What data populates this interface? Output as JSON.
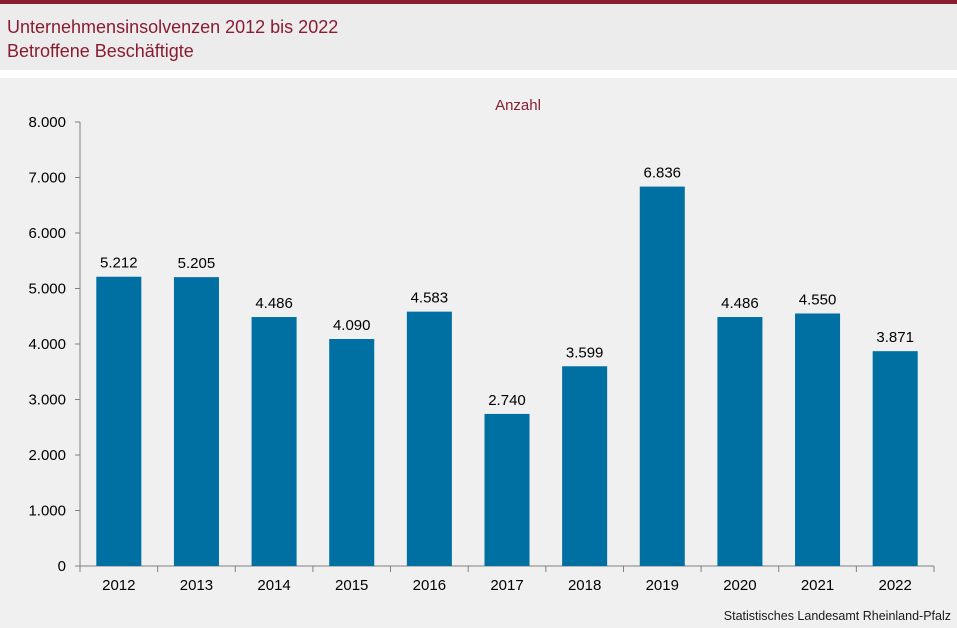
{
  "header": {
    "title": "Unternehmensinsolvenzen 2012 bis 2022",
    "subtitle": "Betroffene Beschäftigte"
  },
  "source": "Statistisches Landesamt  Rheinland-Pfalz",
  "colors": {
    "accent": "#8a1c32",
    "bar": "#0070a3",
    "background": "#f0f0f0"
  },
  "chart_data": {
    "type": "bar",
    "title": "Unternehmensinsolvenzen 2012 bis 2022",
    "subtitle": "Betroffene Beschäftigte",
    "ylabel": "Anzahl",
    "xlabel": "",
    "categories": [
      "2012",
      "2013",
      "2014",
      "2015",
      "2016",
      "2017",
      "2018",
      "2019",
      "2020",
      "2021",
      "2022"
    ],
    "values": [
      5212,
      5205,
      4486,
      4090,
      4583,
      2740,
      3599,
      6836,
      4486,
      4550,
      3871
    ],
    "value_labels": [
      "5.212",
      "5.205",
      "4.486",
      "4.090",
      "4.583",
      "2.740",
      "3.599",
      "6.836",
      "4.486",
      "4.550",
      "3.871"
    ],
    "ylim": [
      0,
      8000
    ],
    "yticks": [
      0,
      1000,
      2000,
      3000,
      4000,
      5000,
      6000,
      7000,
      8000
    ],
    "ytick_labels": [
      "0",
      "1.000",
      "2.000",
      "3.000",
      "4.000",
      "5.000",
      "6.000",
      "7.000",
      "8.000"
    ],
    "grid": false,
    "legend": "none"
  }
}
